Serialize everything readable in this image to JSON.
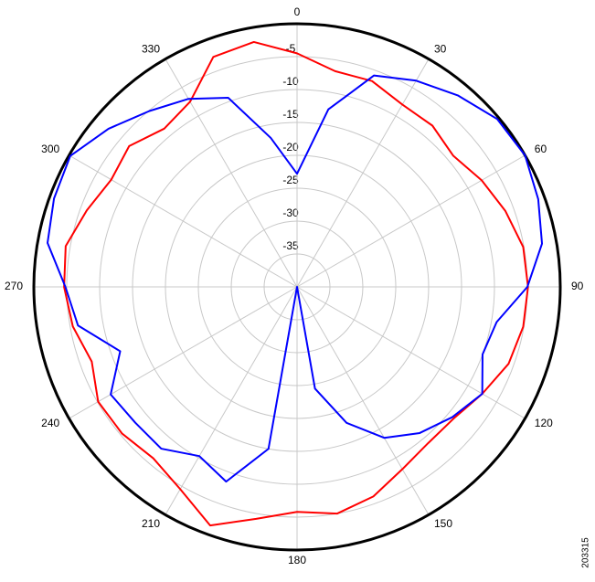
{
  "chart_data": {
    "type": "polar",
    "x": [
      0,
      10,
      20,
      30,
      40,
      50,
      60,
      70,
      80,
      90,
      100,
      110,
      120,
      130,
      140,
      150,
      160,
      170,
      180,
      190,
      200,
      210,
      220,
      230,
      240,
      250,
      260,
      270,
      280,
      290,
      300,
      310,
      320,
      330,
      340,
      350
    ],
    "series": [
      {
        "color": "#ff0000",
        "values": [
          -4.5,
          -6.7,
          -6.7,
          -8,
          -8,
          -9,
          -7.6,
          -6.3,
          -5.1,
          -4.9,
          -5.1,
          -5.8,
          -7.5,
          -8.9,
          -9,
          -8,
          -6.1,
          -5,
          -5.8,
          -4.2,
          -1.4,
          -4.5,
          -6,
          -5.3,
          -5.1,
          -6.8,
          -5.4,
          -4.6,
          -4.3,
          -6,
          -7.4,
          -6.7,
          -8.6,
          -7.5,
          -2.8,
          -2.2
        ]
      },
      {
        "color": "#0000ff",
        "values": [
          -22.8,
          -12.6,
          -5.8,
          -3.8,
          -2,
          -0.3,
          0,
          -1,
          -2.2,
          -5,
          -9.2,
          -10,
          -7.5,
          -9.2,
          -11,
          -13.5,
          -18,
          -24.3,
          -40,
          -15,
          -8.5,
          -10.3,
          -7.9,
          -7.9,
          -7.3,
          -11.4,
          -6.2,
          -4.8,
          -1.5,
          -0.7,
          -0.2,
          -2.6,
          -5.1,
          -7,
          -9.4,
          -17
        ]
      }
    ],
    "rlim": [
      -40,
      0
    ],
    "rticks": [
      -35,
      -30,
      -25,
      -20,
      -15,
      -10,
      -5
    ],
    "angle_ticks": [
      0,
      30,
      60,
      90,
      120,
      150,
      180,
      210,
      240,
      270,
      300,
      330
    ],
    "grid": true,
    "figure_id": "203315"
  }
}
